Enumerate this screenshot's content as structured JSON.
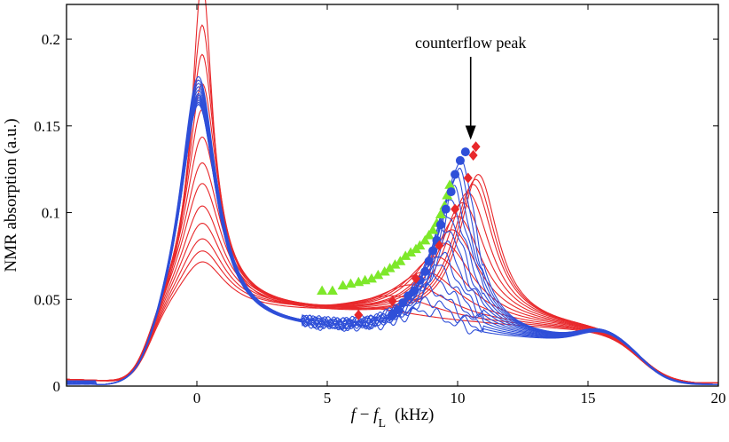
{
  "chart_data": {
    "type": "line",
    "xlabel_parts": {
      "f": "f",
      "minus": " − ",
      "fL": "f",
      "fL_sub": "L",
      "unit": "(kHz)"
    },
    "ylabel": "NMR absorption  (a.u.)",
    "xlim": [
      -5,
      20
    ],
    "ylim": [
      0,
      0.22
    ],
    "xticks": [
      0,
      5,
      10,
      15,
      20
    ],
    "xtick_labels": [
      "0",
      "5",
      "10",
      "15",
      "20"
    ],
    "yticks": [
      0,
      0.05,
      0.1,
      0.15,
      0.2
    ],
    "ytick_labels": [
      "0",
      "0.05",
      "0.1",
      "0.15",
      "0.2"
    ],
    "grid": false,
    "annotation": {
      "text": "counterflow peak",
      "x": 10.5,
      "y_tip": 0.142,
      "y_tail": 0.168
    },
    "line_series": {
      "red": {
        "color": "#e8282b",
        "curves": [
          {
            "peak1": 0.215,
            "peak2_x": 10.8,
            "peak2": 0.131
          },
          {
            "peak1": 0.189,
            "peak2_x": 10.7,
            "peak2": 0.128
          },
          {
            "peak1": 0.172,
            "peak2_x": 10.6,
            "peak2": 0.125
          },
          {
            "peak1": 0.155,
            "peak2_x": 10.4,
            "peak2": 0.12
          },
          {
            "peak1": 0.14,
            "peak2_x": 10.2,
            "peak2": 0.114
          },
          {
            "peak1": 0.124,
            "peak2_x": 10.0,
            "peak2": 0.106
          },
          {
            "peak1": 0.109,
            "peak2_x": 9.8,
            "peak2": 0.098
          },
          {
            "peak1": 0.097,
            "peak2_x": 9.5,
            "peak2": 0.09
          },
          {
            "peak1": 0.084,
            "peak2_x": 9.2,
            "peak2": 0.082
          },
          {
            "peak1": 0.074,
            "peak2_x": 8.8,
            "peak2": 0.073
          },
          {
            "peak1": 0.065,
            "peak2_x": 8.3,
            "peak2": 0.065
          },
          {
            "peak1": 0.058,
            "peak2_x": 7.6,
            "peak2": 0.058
          },
          {
            "peak1": 0.052,
            "peak2_x": 6.8,
            "peak2": 0.05
          }
        ]
      },
      "blue": {
        "color": "#2f4fd8",
        "curves": [
          {
            "peak1": 0.178,
            "peak2_x": 10.1,
            "peak2": 0.133
          },
          {
            "peak1": 0.176,
            "peak2_x": 10.0,
            "peak2": 0.127
          },
          {
            "peak1": 0.174,
            "peak2_x": 9.9,
            "peak2": 0.121
          },
          {
            "peak1": 0.172,
            "peak2_x": 9.8,
            "peak2": 0.115
          },
          {
            "peak1": 0.17,
            "peak2_x": 9.7,
            "peak2": 0.108
          },
          {
            "peak1": 0.168,
            "peak2_x": 9.6,
            "peak2": 0.1
          },
          {
            "peak1": 0.167,
            "peak2_x": 9.5,
            "peak2": 0.093
          },
          {
            "peak1": 0.166,
            "peak2_x": 9.4,
            "peak2": 0.085
          },
          {
            "peak1": 0.165,
            "peak2_x": 9.3,
            "peak2": 0.077
          },
          {
            "peak1": 0.164,
            "peak2_x": 9.2,
            "peak2": 0.07
          },
          {
            "peak1": 0.163,
            "peak2_x": 9.1,
            "peak2": 0.063
          },
          {
            "peak1": 0.163,
            "peak2_x": 9.0,
            "peak2": 0.056
          },
          {
            "peak1": 0.162,
            "peak2_x": 8.9,
            "peak2": 0.05
          },
          {
            "peak1": 0.162,
            "peak2_x": 8.7,
            "peak2": 0.044
          }
        ]
      }
    },
    "marker_series": [
      {
        "marker": "triangle",
        "color": "#7ee82a",
        "x": [
          4.8,
          5.2,
          5.6,
          5.9,
          6.2,
          6.45,
          6.7,
          6.95,
          7.2,
          7.4,
          7.6,
          7.8,
          8.0,
          8.2,
          8.4,
          8.55,
          8.75,
          8.9,
          9.05,
          9.2,
          9.35,
          9.5,
          9.6,
          9.7
        ],
        "y": [
          0.055,
          0.055,
          0.058,
          0.059,
          0.06,
          0.061,
          0.062,
          0.064,
          0.066,
          0.068,
          0.07,
          0.072,
          0.075,
          0.077,
          0.079,
          0.081,
          0.084,
          0.087,
          0.09,
          0.094,
          0.099,
          0.104,
          0.11,
          0.116
        ]
      },
      {
        "marker": "circle",
        "color": "#2f4fd8",
        "x": [
          7.5,
          7.7,
          7.9,
          8.1,
          8.35,
          8.55,
          8.75,
          8.9,
          9.05,
          9.2,
          9.35,
          9.55,
          9.75,
          9.9,
          10.1,
          10.3
        ],
        "y": [
          0.041,
          0.044,
          0.048,
          0.052,
          0.055,
          0.061,
          0.066,
          0.072,
          0.078,
          0.084,
          0.093,
          0.102,
          0.112,
          0.122,
          0.13,
          0.135
        ]
      },
      {
        "marker": "diamond",
        "color": "#e8282b",
        "x": [
          6.2,
          7.5,
          8.4,
          9.3,
          9.9,
          10.4,
          10.6,
          10.7
        ],
        "y": [
          0.041,
          0.049,
          0.062,
          0.081,
          0.102,
          0.12,
          0.133,
          0.138
        ]
      }
    ]
  }
}
